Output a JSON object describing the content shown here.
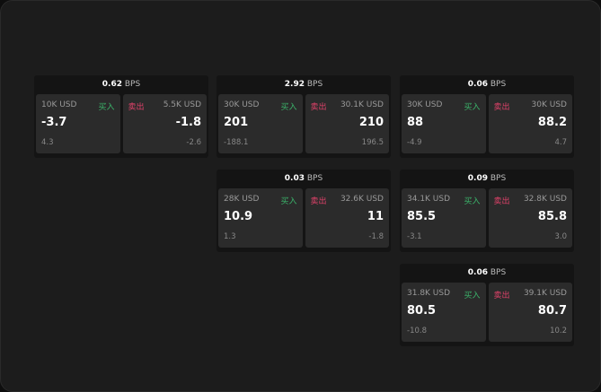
{
  "unit": "BPS",
  "buy_label": "买入",
  "sell_label": "卖出",
  "cards": [
    {
      "bps": "0.62",
      "buy": {
        "qty": "10K USD",
        "price": "-3.7",
        "delta": "4.3"
      },
      "sell": {
        "qty": "5.5K USD",
        "price": "-1.8",
        "delta": "-2.6"
      }
    },
    {
      "bps": "2.92",
      "buy": {
        "qty": "30K USD",
        "price": "201",
        "delta": "-188.1"
      },
      "sell": {
        "qty": "30.1K USD",
        "price": "210",
        "delta": "196.5"
      }
    },
    {
      "bps": "0.06",
      "buy": {
        "qty": "30K USD",
        "price": "88",
        "delta": "-4.9"
      },
      "sell": {
        "qty": "30K USD",
        "price": "88.2",
        "delta": "4.7"
      }
    },
    {
      "bps": "0.03",
      "buy": {
        "qty": "28K USD",
        "price": "10.9",
        "delta": "1.3"
      },
      "sell": {
        "qty": "32.6K USD",
        "price": "11",
        "delta": "-1.8"
      }
    },
    {
      "bps": "0.09",
      "buy": {
        "qty": "34.1K USD",
        "price": "85.5",
        "delta": "-3.1"
      },
      "sell": {
        "qty": "32.8K USD",
        "price": "85.8",
        "delta": "3.0"
      }
    },
    {
      "bps": "0.06",
      "buy": {
        "qty": "31.8K USD",
        "price": "80.5",
        "delta": "-10.8"
      },
      "sell": {
        "qty": "39.1K USD",
        "price": "80.7",
        "delta": "10.2"
      }
    }
  ]
}
